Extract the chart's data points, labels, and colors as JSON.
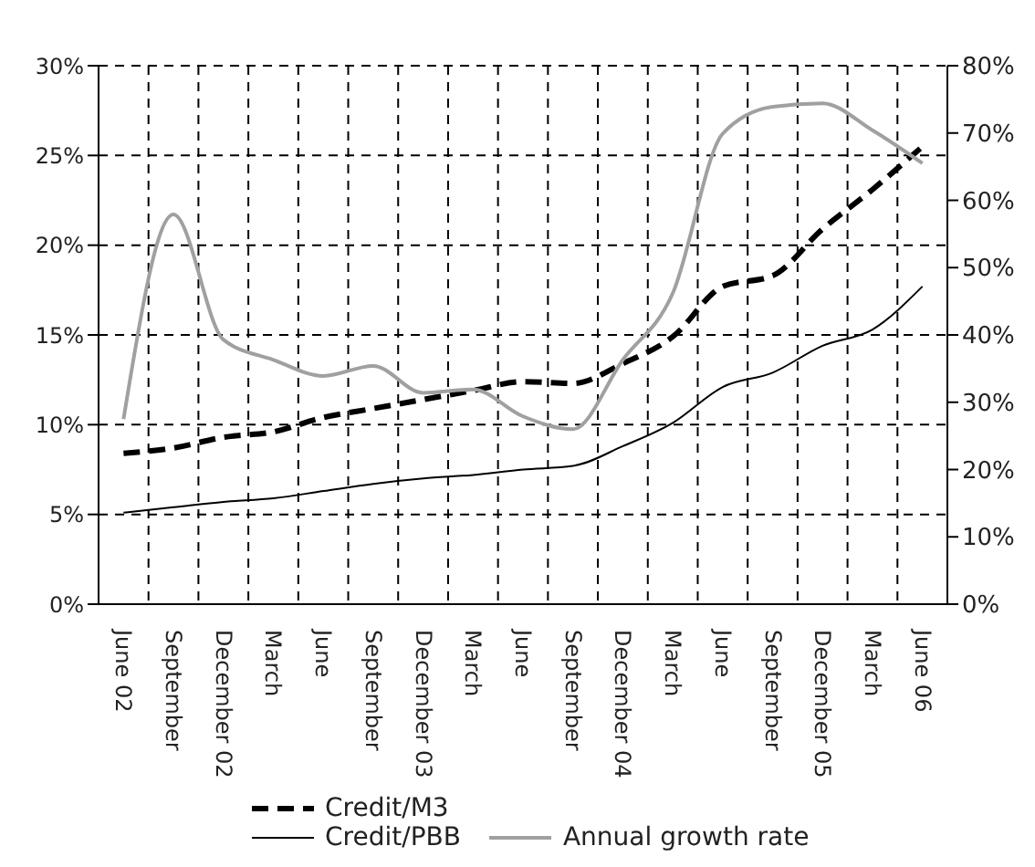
{
  "chart_data": {
    "type": "line",
    "categories": [
      "June 02",
      "September",
      "December 02",
      "March",
      "June",
      "September",
      "December 03",
      "March",
      "June",
      "September",
      "December 04",
      "March",
      "June",
      "September",
      "December 05",
      "March",
      "June 06"
    ],
    "series": [
      {
        "name": "Credit/M3",
        "color": "#000000",
        "line_style": "dashed",
        "values": [
          8.4,
          8.7,
          9.3,
          9.6,
          10.4,
          10.9,
          11.4,
          11.9,
          12.4,
          12.3,
          13.4,
          14.9,
          17.7,
          18.3,
          20.9,
          23.1,
          25.5
        ]
      },
      {
        "name": "Credit/PBB",
        "color": "#000000",
        "line_style": "solid",
        "values": [
          5.1,
          5.4,
          5.7,
          5.9,
          6.3,
          6.7,
          7.0,
          7.2,
          7.5,
          7.7,
          8.8,
          10.1,
          12.1,
          12.9,
          14.4,
          15.3,
          17.7
        ]
      },
      {
        "name": "Annual growth rate",
        "color": "#a0a0a0",
        "line_style": "solid",
        "axis": "y2",
        "values": [
          27.5,
          57.9,
          39.3,
          36.3,
          33.9,
          35.4,
          31.4,
          31.9,
          27.9,
          26.0,
          36.3,
          46.2,
          69.9,
          73.9,
          74.4,
          70.4,
          65.5
        ]
      }
    ],
    "ylim": [
      0,
      30
    ],
    "yticks": [
      {
        "value": 0,
        "label": "0%"
      },
      {
        "value": 5,
        "label": "5%"
      },
      {
        "value": 10,
        "label": "10%"
      },
      {
        "value": 15,
        "label": "15%"
      },
      {
        "value": 20,
        "label": "20%"
      },
      {
        "value": 25,
        "label": "25%"
      },
      {
        "value": 30,
        "label": "30%"
      }
    ],
    "y2lim": [
      0,
      80
    ],
    "y2ticks": [
      {
        "value": 0,
        "label": "0%"
      },
      {
        "value": 10,
        "label": "10%"
      },
      {
        "value": 20,
        "label": "20%"
      },
      {
        "value": 30,
        "label": "30%"
      },
      {
        "value": 40,
        "label": "40%"
      },
      {
        "value": 50,
        "label": "50%"
      },
      {
        "value": 60,
        "label": "60%"
      },
      {
        "value": 70,
        "label": "70%"
      },
      {
        "value": 80,
        "label": "80%"
      }
    ],
    "grid": true,
    "legend": "bottom",
    "marker": "none"
  }
}
